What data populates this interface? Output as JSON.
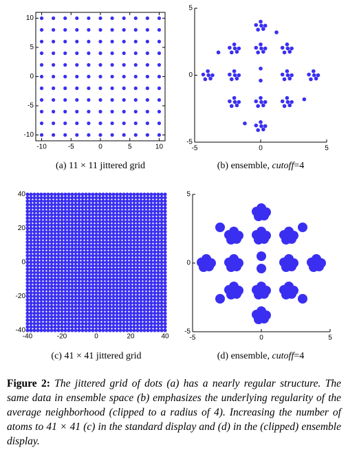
{
  "chart_data": [
    {
      "type": "scatter-grid",
      "color": "#3a2ff0",
      "x": [
        -10,
        -8,
        -6,
        -4,
        -2,
        0,
        2,
        4,
        6,
        8,
        10
      ],
      "y": [
        -10,
        -8,
        -6,
        -4,
        -2,
        0,
        2,
        4,
        6,
        8,
        10
      ],
      "xlim": [
        -11,
        11
      ],
      "ylim": [
        -11,
        11
      ],
      "xticks": [
        -10,
        -5,
        0,
        5,
        10
      ],
      "yticks": [
        -10,
        -5,
        0,
        5,
        10
      ],
      "box": true,
      "caption": [
        {
          "text": "(a)  11 × 11 jittered grid"
        }
      ]
    },
    {
      "type": "scatter",
      "color": "#3a2ff0",
      "x": [
        -0.35,
        0,
        0.35,
        -0.2,
        0.2,
        0.05,
        -2.35,
        -2,
        -1.65,
        -2.2,
        -1.8,
        -1.95,
        -0.35,
        0,
        0.35,
        -0.2,
        0.2,
        0.05,
        1.65,
        2,
        2.35,
        1.8,
        2.2,
        2.05,
        -4.35,
        -4,
        -3.65,
        -4.2,
        -3.8,
        -3.95,
        -2.35,
        -2,
        -1.65,
        -2.2,
        -1.8,
        -1.95,
        1.65,
        2,
        2.35,
        1.8,
        2.2,
        2.05,
        3.65,
        4,
        4.35,
        3.8,
        4.2,
        4.05,
        -2.35,
        -2,
        -1.65,
        -2.2,
        -1.8,
        -1.95,
        -0.35,
        0,
        0.35,
        -0.2,
        0.2,
        0.05,
        1.65,
        2,
        2.35,
        1.8,
        2.2,
        2.05,
        -0.35,
        0,
        0.35,
        -0.2,
        0.2,
        0.05,
        0,
        0,
        -3.2,
        3.3,
        -1.2,
        1.2
      ],
      "y": [
        3.75,
        4,
        3.7,
        3.4,
        3.45,
        3.7,
        2.05,
        2.3,
        2,
        1.7,
        1.75,
        2,
        2.05,
        2.3,
        2,
        1.7,
        1.75,
        2,
        2.05,
        2.3,
        2,
        1.7,
        1.75,
        2,
        0.05,
        0.3,
        0,
        -0.3,
        -0.25,
        0,
        0.05,
        0.3,
        0,
        -0.3,
        -0.25,
        0,
        0.05,
        0.3,
        0,
        -0.3,
        -0.25,
        0,
        0.05,
        0.3,
        0,
        -0.3,
        -0.25,
        0,
        -1.95,
        -1.7,
        -2,
        -2.3,
        -2.25,
        -2,
        -1.95,
        -1.7,
        -2,
        -2.3,
        -2.25,
        -2,
        -1.95,
        -1.7,
        -2,
        -2.3,
        -2.25,
        -2,
        -3.75,
        -3.5,
        -3.8,
        -4.1,
        -4.05,
        -3.8,
        0.5,
        -0.4,
        1.7,
        -1.8,
        -3.6,
        3.2
      ],
      "xlim": [
        -5,
        5
      ],
      "ylim": [
        -5,
        5
      ],
      "xticks": [
        -5,
        0,
        5
      ],
      "yticks": [
        -5,
        0,
        5
      ],
      "box": false,
      "caption": [
        {
          "text": "(b)  ensemble, "
        },
        {
          "text": "cutoff",
          "italic": true
        },
        {
          "text": "=4"
        }
      ]
    },
    {
      "type": "scatter-grid",
      "color": "#3a2ff0",
      "x": [
        -40,
        -38,
        -36,
        -34,
        -32,
        -30,
        -28,
        -26,
        -24,
        -22,
        -20,
        -18,
        -16,
        -14,
        -12,
        -10,
        -8,
        -6,
        -4,
        -2,
        0,
        2,
        4,
        6,
        8,
        10,
        12,
        14,
        16,
        18,
        20,
        22,
        24,
        26,
        28,
        30,
        32,
        34,
        36,
        38,
        40
      ],
      "y": [
        -40,
        -38,
        -36,
        -34,
        -32,
        -30,
        -28,
        -26,
        -24,
        -22,
        -20,
        -18,
        -16,
        -14,
        -12,
        -10,
        -8,
        -6,
        -4,
        -2,
        0,
        2,
        4,
        6,
        8,
        10,
        12,
        14,
        16,
        18,
        20,
        22,
        24,
        26,
        28,
        30,
        32,
        34,
        36,
        38,
        40
      ],
      "xlim": [
        -40,
        40
      ],
      "ylim": [
        -40,
        40
      ],
      "xticks": [
        -40,
        -20,
        0,
        20,
        40
      ],
      "yticks": [
        -40,
        -20,
        0,
        20,
        40
      ],
      "box": true,
      "caption": [
        {
          "text": "(c)  41 × 41 jittered grid"
        }
      ]
    },
    {
      "type": "scatter",
      "color": "#3a2ff0",
      "x": [
        -0.35,
        0,
        0.35,
        -0.2,
        0.2,
        0.05,
        -2.35,
        -2,
        -1.65,
        -2.2,
        -1.8,
        -1.95,
        -0.35,
        0,
        0.35,
        -0.2,
        0.2,
        0.05,
        1.65,
        2,
        2.35,
        1.8,
        2.2,
        2.05,
        -4.35,
        -4,
        -3.65,
        -4.2,
        -3.8,
        -3.95,
        -2.35,
        -2,
        -1.65,
        -2.2,
        -1.8,
        -1.95,
        1.65,
        2,
        2.35,
        1.8,
        2.2,
        2.05,
        3.65,
        4,
        4.35,
        3.8,
        4.2,
        4.05,
        -2.35,
        -2,
        -1.65,
        -2.2,
        -1.8,
        -1.95,
        -0.35,
        0,
        0.35,
        -0.2,
        0.2,
        0.05,
        1.65,
        2,
        2.35,
        1.8,
        2.2,
        2.05,
        -0.35,
        0,
        0.35,
        -0.2,
        0.2,
        0.05,
        0,
        0,
        -3,
        3,
        -3,
        3
      ],
      "y": [
        3.75,
        4,
        3.7,
        3.4,
        3.45,
        3.7,
        2.05,
        2.3,
        2,
        1.7,
        1.75,
        2,
        2.05,
        2.3,
        2,
        1.7,
        1.75,
        2,
        2.05,
        2.3,
        2,
        1.7,
        1.75,
        2,
        0.05,
        0.3,
        0,
        -0.3,
        -0.25,
        0,
        0.05,
        0.3,
        0,
        -0.3,
        -0.25,
        0,
        0.05,
        0.3,
        0,
        -0.3,
        -0.25,
        0,
        0.05,
        0.3,
        0,
        -0.3,
        -0.25,
        0,
        -1.95,
        -1.7,
        -2,
        -2.3,
        -2.25,
        -2,
        -1.95,
        -1.7,
        -2,
        -2.3,
        -2.25,
        -2,
        -1.95,
        -1.7,
        -2,
        -2.3,
        -2.25,
        -2,
        -3.75,
        -3.5,
        -3.8,
        -4.1,
        -4.05,
        -3.8,
        0.5,
        -0.4,
        2.6,
        2.6,
        -2.6,
        -2.6
      ],
      "xlim": [
        -5,
        5
      ],
      "ylim": [
        -5,
        5
      ],
      "xticks": [
        -5,
        0,
        5
      ],
      "yticks": [
        -5,
        0,
        5
      ],
      "box": false,
      "caption": [
        {
          "text": "(d)  ensemble, "
        },
        {
          "text": "cutoff",
          "italic": true
        },
        {
          "text": "=4"
        }
      ]
    }
  ],
  "figure_caption": {
    "label": "Figure 2:",
    "text": "The jittered grid of dots (a) has a nearly regular structure. The same data in ensemble space (b) emphasizes the underlying regularity of the average neighborhood (clipped to a radius of 4). Increasing the number of atoms to 41 × 41 (c) in the standard display and (d) in the (clipped) ensemble display."
  }
}
